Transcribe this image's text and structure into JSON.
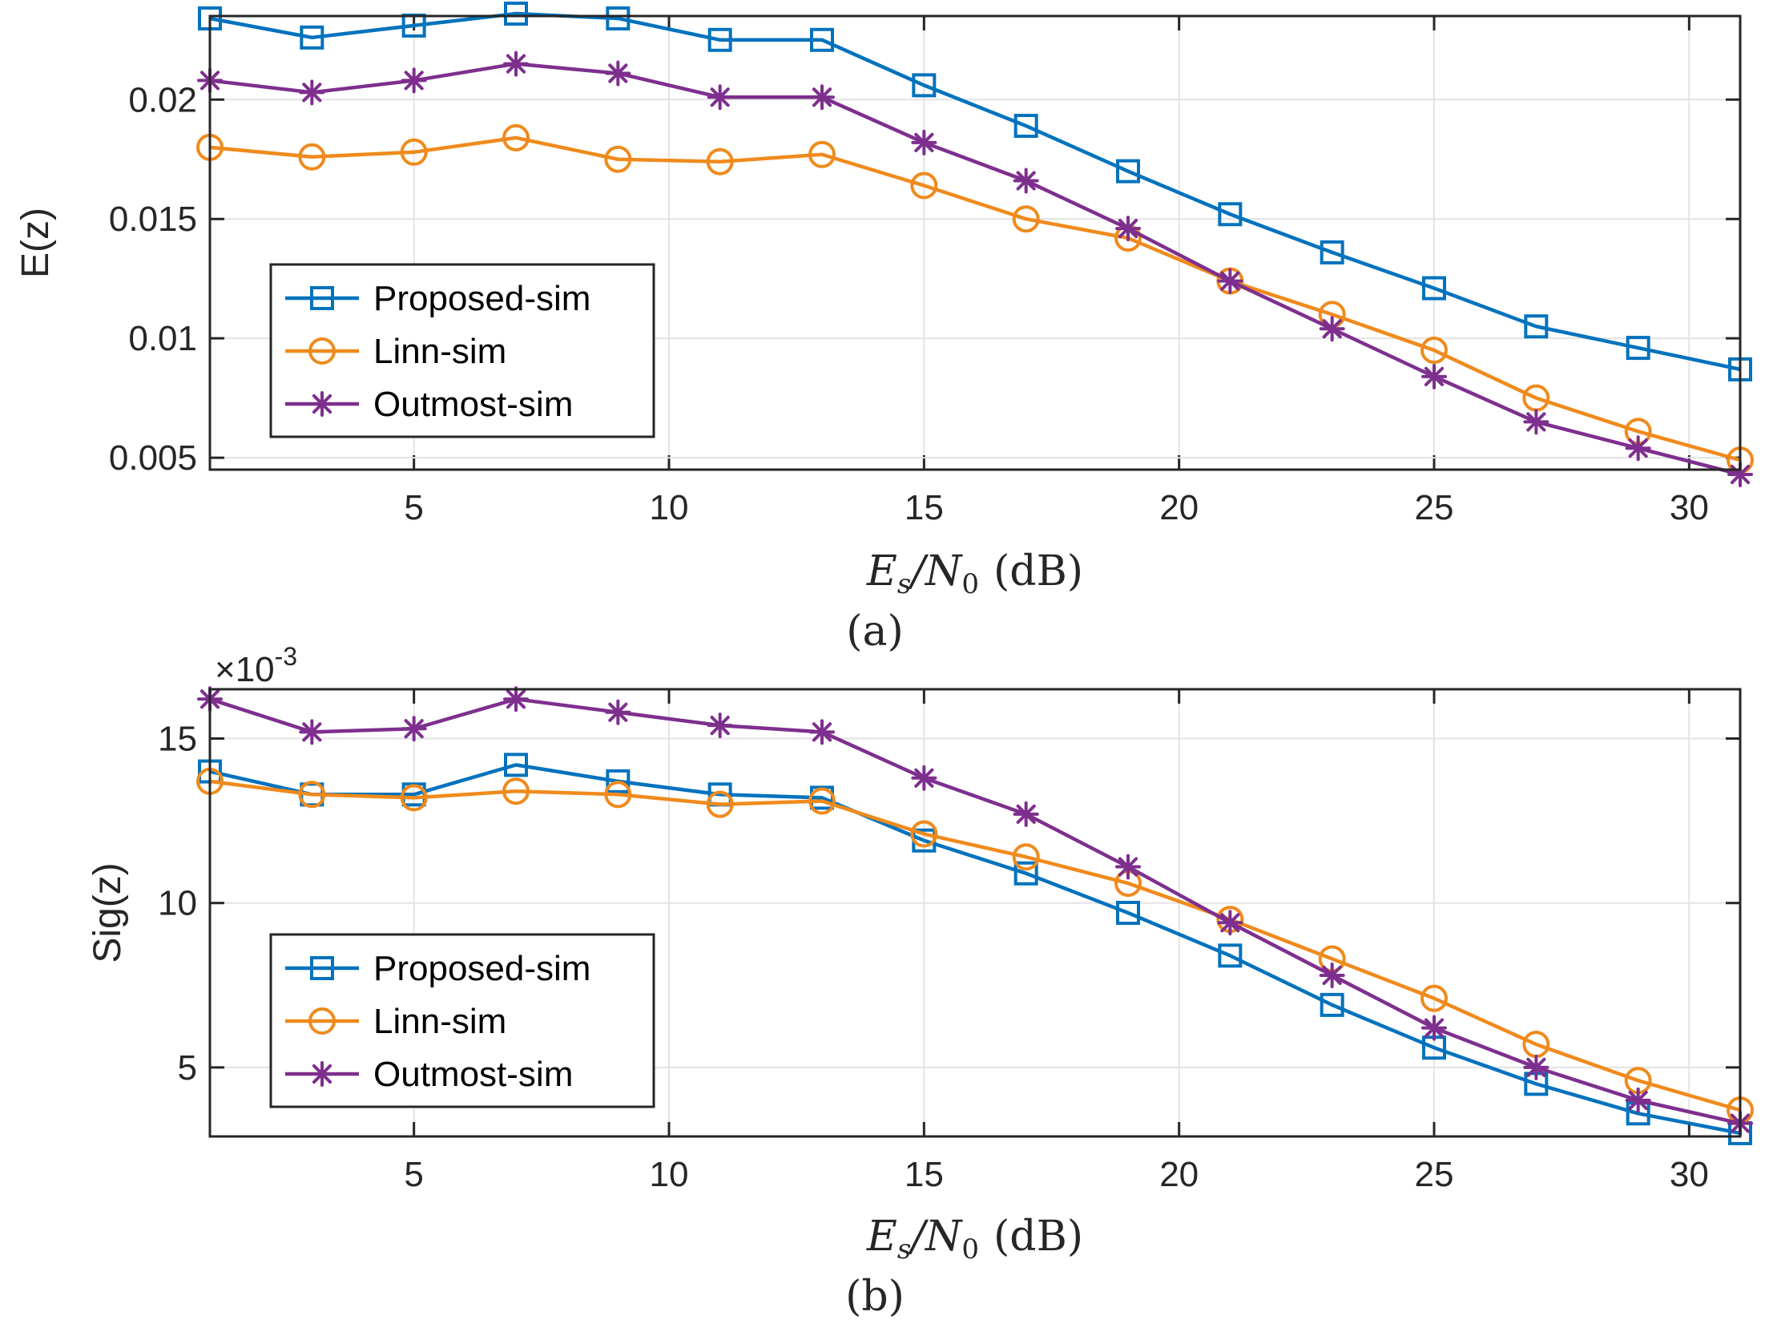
{
  "colors": {
    "proposed": "#0072BD",
    "linn": "#EDB120",
    "linn_line": "#F08A1C",
    "outmost": "#7E2F8E",
    "grid": "#e3e3e3",
    "axis": "#262626"
  },
  "chart_data": [
    {
      "type": "line",
      "id": "a",
      "title": "",
      "caption": "(a)",
      "xlabel": "E_s/N_0 (dB)",
      "xlabel_parts": {
        "E": "E",
        "s": "s",
        "slash": "/N",
        "zero": "0",
        "unit": "(dB)"
      },
      "ylabel": "E(z)",
      "xlim": [
        1,
        31
      ],
      "ylim": [
        0.0045,
        0.0235
      ],
      "xticks": [
        5,
        10,
        15,
        20,
        25,
        30
      ],
      "xtick_labels": [
        "5",
        "10",
        "15",
        "20",
        "25",
        "30"
      ],
      "yticks": [
        0.005,
        0.01,
        0.015,
        0.02
      ],
      "ytick_labels": [
        "0.005",
        "0.01",
        "0.015",
        "0.02"
      ],
      "legend_position": "lower-left",
      "x": [
        1,
        3,
        5,
        7,
        9,
        11,
        13,
        15,
        17,
        19,
        21,
        23,
        25,
        27,
        29,
        31
      ],
      "series": [
        {
          "name": "Proposed-sim",
          "marker": "square",
          "color_key": "proposed",
          "values": [
            0.0234,
            0.0226,
            0.0231,
            0.0236,
            0.0234,
            0.0225,
            0.0225,
            0.0206,
            0.0189,
            0.017,
            0.0152,
            0.0136,
            0.0121,
            0.0105,
            0.0096,
            0.0087
          ]
        },
        {
          "name": "Linn-sim",
          "marker": "circle",
          "color_key": "linn_line",
          "values": [
            0.018,
            0.0176,
            0.0178,
            0.0184,
            0.0175,
            0.0174,
            0.0177,
            0.0164,
            0.015,
            0.0142,
            0.0124,
            0.011,
            0.0095,
            0.0075,
            0.0061,
            0.0049
          ]
        },
        {
          "name": "Outmost-sim",
          "marker": "star",
          "color_key": "outmost",
          "values": [
            0.0208,
            0.0203,
            0.0208,
            0.0215,
            0.0211,
            0.0201,
            0.0201,
            0.0182,
            0.0166,
            0.0146,
            0.0124,
            0.0104,
            0.0084,
            0.0065,
            0.0054,
            0.0043
          ]
        }
      ]
    },
    {
      "type": "line",
      "id": "b",
      "title": "",
      "caption": "(b)",
      "xlabel": "E_s/N_0 (dB)",
      "xlabel_parts": {
        "E": "E",
        "s": "s",
        "slash": "/N",
        "zero": "0",
        "unit": "(dB)"
      },
      "ylabel": "Sig(z)",
      "multiplier": "×10",
      "multiplier_exp": "-3",
      "xlim": [
        1,
        31
      ],
      "ylim": [
        2.9,
        16.5
      ],
      "xticks": [
        5,
        10,
        15,
        20,
        25,
        30
      ],
      "xtick_labels": [
        "5",
        "10",
        "15",
        "20",
        "25",
        "30"
      ],
      "yticks": [
        5,
        10,
        15
      ],
      "ytick_labels": [
        "5",
        "10",
        "15"
      ],
      "legend_position": "lower-left",
      "x": [
        1,
        3,
        5,
        7,
        9,
        11,
        13,
        15,
        17,
        19,
        21,
        23,
        25,
        27,
        29,
        31
      ],
      "series": [
        {
          "name": "Proposed-sim",
          "marker": "square",
          "color_key": "proposed",
          "values": [
            14.0,
            13.3,
            13.3,
            14.2,
            13.7,
            13.3,
            13.2,
            11.9,
            10.9,
            9.7,
            8.4,
            6.9,
            5.6,
            4.5,
            3.6,
            3.0
          ]
        },
        {
          "name": "Linn-sim",
          "marker": "circle",
          "color_key": "linn_line",
          "values": [
            13.7,
            13.3,
            13.2,
            13.4,
            13.3,
            13.0,
            13.1,
            12.1,
            11.4,
            10.6,
            9.5,
            8.3,
            7.1,
            5.7,
            4.6,
            3.7
          ]
        },
        {
          "name": "Outmost-sim",
          "marker": "star",
          "color_key": "outmost",
          "values": [
            16.2,
            15.2,
            15.3,
            16.2,
            15.8,
            15.4,
            15.2,
            13.8,
            12.7,
            11.1,
            9.4,
            7.8,
            6.2,
            5.0,
            4.0,
            3.3
          ]
        }
      ]
    }
  ]
}
